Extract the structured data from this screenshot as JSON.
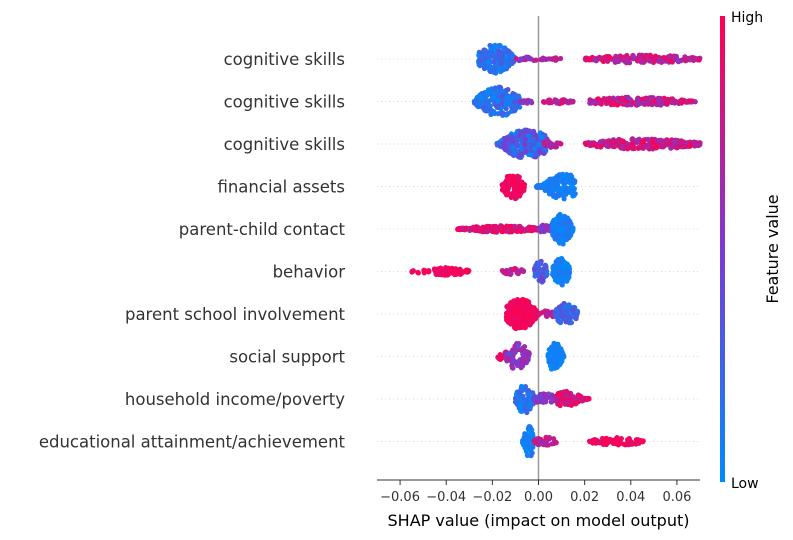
{
  "chart_data": {
    "type": "scatter",
    "subtype": "shap-beeswarm",
    "title": "",
    "xlabel": "SHAP value (impact on model output)",
    "xlim": [
      -0.07,
      0.07
    ],
    "x_ticks": [
      "−0.06",
      "−0.04",
      "−0.02",
      "0.00",
      "0.02",
      "0.04",
      "0.06"
    ],
    "x_tick_values": [
      -0.06,
      -0.04,
      -0.02,
      0.0,
      0.02,
      0.04,
      0.06
    ],
    "zero_line": true,
    "features": [
      {
        "name": "cognitive skills",
        "clusters": [
          {
            "from": -0.026,
            "to": -0.01,
            "center": -0.019,
            "spread": 0.8,
            "count": 210,
            "color": [
              0.0,
              0.35
            ]
          },
          {
            "from": -0.01,
            "to": 0.008,
            "center": -0.006,
            "spread": 0.12,
            "count": 30,
            "color": [
              0.45,
              0.8
            ]
          },
          {
            "from": 0.006,
            "to": 0.01,
            "center": 0.008,
            "spread": 0.08,
            "count": 5,
            "color": [
              0.7,
              0.85
            ]
          },
          {
            "from": 0.02,
            "to": 0.07,
            "center": 0.045,
            "spread": 0.22,
            "count": 170,
            "color": [
              0.55,
              1.0
            ]
          }
        ]
      },
      {
        "name": "cognitive skills",
        "clusters": [
          {
            "from": -0.028,
            "to": -0.008,
            "center": -0.017,
            "spread": 0.8,
            "count": 220,
            "color": [
              0.0,
              0.35
            ]
          },
          {
            "from": -0.008,
            "to": -0.002,
            "center": -0.005,
            "spread": 0.1,
            "count": 12,
            "color": [
              0.4,
              0.75
            ]
          },
          {
            "from": 0.002,
            "to": 0.015,
            "center": 0.008,
            "spread": 0.14,
            "count": 30,
            "color": [
              0.6,
              0.9
            ]
          },
          {
            "from": 0.022,
            "to": 0.068,
            "center": 0.042,
            "spread": 0.24,
            "count": 170,
            "color": [
              0.55,
              1.0
            ]
          }
        ]
      },
      {
        "name": "cognitive skills",
        "clusters": [
          {
            "from": -0.018,
            "to": 0.004,
            "center": -0.005,
            "spread": 0.8,
            "count": 340,
            "color": [
              0.0,
              0.55
            ]
          },
          {
            "from": 0.002,
            "to": 0.01,
            "center": 0.006,
            "spread": 0.2,
            "count": 20,
            "color": [
              0.55,
              0.85
            ]
          },
          {
            "from": 0.02,
            "to": 0.07,
            "center": 0.045,
            "spread": 0.3,
            "count": 230,
            "color": [
              0.6,
              1.0
            ]
          }
        ]
      },
      {
        "name": "financial assets",
        "clusters": [
          {
            "from": -0.016,
            "to": -0.006,
            "center": -0.011,
            "spread": 0.7,
            "count": 110,
            "color": [
              0.88,
              1.0
            ]
          },
          {
            "from": -0.001,
            "to": 0.016,
            "center": 0.011,
            "spread": 0.7,
            "count": 200,
            "color": [
              0.0,
              0.15
            ]
          }
        ]
      },
      {
        "name": "parent-child contact",
        "clusters": [
          {
            "from": -0.035,
            "to": 0.0,
            "center": -0.016,
            "spread": 0.18,
            "count": 170,
            "color": [
              0.72,
              1.0
            ]
          },
          {
            "from": 0.0,
            "to": 0.006,
            "center": 0.003,
            "spread": 0.25,
            "count": 20,
            "color": [
              0.4,
              0.7
            ]
          },
          {
            "from": 0.006,
            "to": 0.015,
            "center": 0.01,
            "spread": 0.85,
            "count": 160,
            "color": [
              0.0,
              0.15
            ]
          }
        ]
      },
      {
        "name": "behavior",
        "clusters": [
          {
            "from": -0.056,
            "to": -0.048,
            "center": -0.052,
            "spread": 0.1,
            "count": 8,
            "color": [
              0.9,
              1.0
            ]
          },
          {
            "from": -0.048,
            "to": -0.03,
            "center": -0.039,
            "spread": 0.22,
            "count": 70,
            "color": [
              0.9,
              1.0
            ]
          },
          {
            "from": -0.016,
            "to": -0.006,
            "center": -0.011,
            "spread": 0.18,
            "count": 30,
            "color": [
              0.6,
              0.9
            ]
          },
          {
            "from": -0.002,
            "to": 0.004,
            "center": 0.001,
            "spread": 0.6,
            "count": 60,
            "color": [
              0.15,
              0.5
            ]
          },
          {
            "from": 0.006,
            "to": 0.014,
            "center": 0.01,
            "spread": 0.75,
            "count": 90,
            "color": [
              0.0,
              0.12
            ]
          }
        ]
      },
      {
        "name": "parent school involvement",
        "clusters": [
          {
            "from": -0.014,
            "to": 0.0,
            "center": -0.008,
            "spread": 0.85,
            "count": 250,
            "color": [
              0.9,
              1.0
            ]
          },
          {
            "from": 0.0,
            "to": 0.007,
            "center": 0.004,
            "spread": 0.2,
            "count": 25,
            "color": [
              0.6,
              0.85
            ]
          },
          {
            "from": 0.007,
            "to": 0.017,
            "center": 0.012,
            "spread": 0.6,
            "count": 100,
            "color": [
              0.1,
              0.4
            ]
          }
        ]
      },
      {
        "name": "social support",
        "clusters": [
          {
            "from": -0.018,
            "to": -0.011,
            "center": -0.014,
            "spread": 0.3,
            "count": 20,
            "color": [
              0.8,
              1.0
            ]
          },
          {
            "from": -0.014,
            "to": -0.004,
            "center": -0.009,
            "spread": 0.75,
            "count": 90,
            "color": [
              0.35,
              0.75
            ]
          },
          {
            "from": 0.004,
            "to": 0.011,
            "center": 0.007,
            "spread": 0.8,
            "count": 110,
            "color": [
              0.0,
              0.12
            ]
          }
        ]
      },
      {
        "name": "household income/poverty",
        "clusters": [
          {
            "from": -0.01,
            "to": -0.002,
            "center": -0.006,
            "spread": 0.8,
            "count": 90,
            "color": [
              0.0,
              0.3
            ]
          },
          {
            "from": -0.002,
            "to": 0.008,
            "center": 0.003,
            "spread": 0.3,
            "count": 60,
            "color": [
              0.4,
              0.7
            ]
          },
          {
            "from": 0.008,
            "to": 0.022,
            "center": 0.012,
            "spread": 0.45,
            "count": 90,
            "color": [
              0.65,
              1.0
            ]
          }
        ]
      },
      {
        "name": "educational attainment/achievement",
        "clusters": [
          {
            "from": -0.007,
            "to": -0.002,
            "center": -0.004,
            "spread": 0.85,
            "count": 80,
            "color": [
              0.0,
              0.15
            ]
          },
          {
            "from": -0.002,
            "to": 0.008,
            "center": 0.003,
            "spread": 0.25,
            "count": 40,
            "color": [
              0.6,
              0.85
            ]
          },
          {
            "from": 0.022,
            "to": 0.046,
            "center": 0.034,
            "spread": 0.22,
            "count": 80,
            "color": [
              0.85,
              1.0
            ]
          }
        ]
      }
    ],
    "colorbar": {
      "label": "Feature value",
      "high_label": "High",
      "low_label": "Low",
      "low_color": "#008bfb",
      "mid_color": "#7c3ad0",
      "high_color": "#ff0051"
    }
  }
}
